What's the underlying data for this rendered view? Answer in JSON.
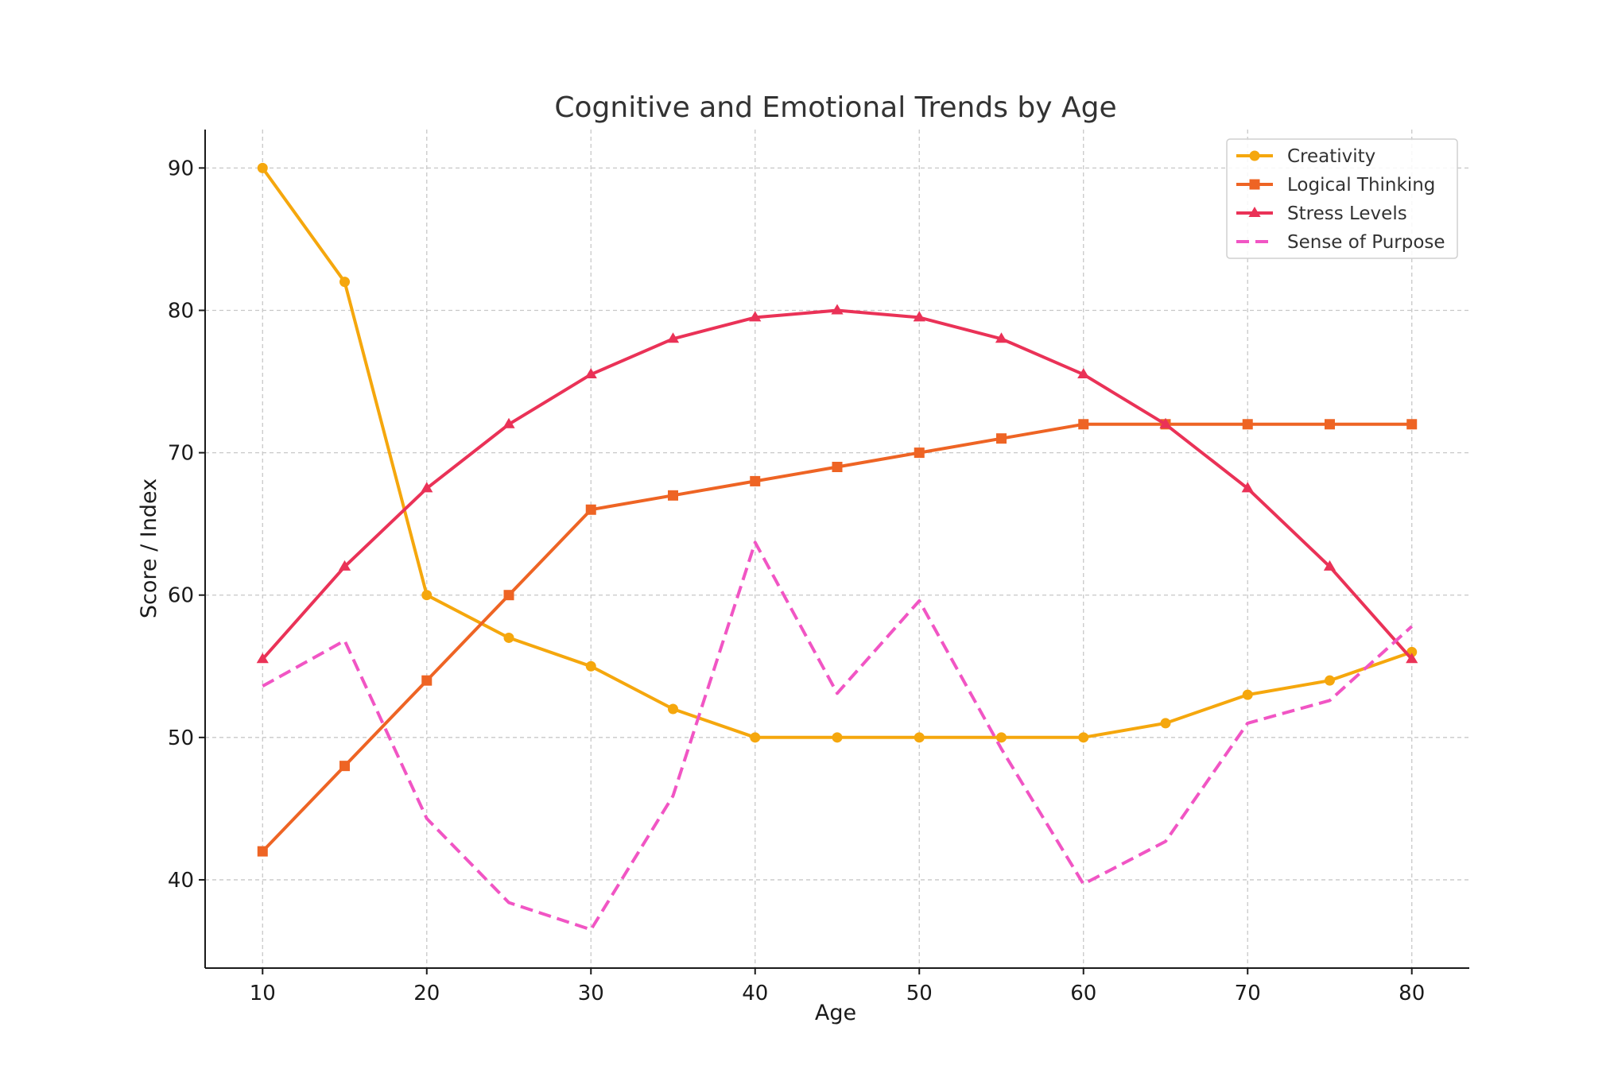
{
  "chart_data": {
    "type": "line",
    "title": "Cognitive and Emotional Trends by Age",
    "xlabel": "Age",
    "ylabel": "Score / Index",
    "xlim": [
      6.5,
      83.5
    ],
    "ylim": [
      33.8,
      92.7
    ],
    "xticks": [
      10,
      20,
      30,
      40,
      50,
      60,
      70,
      80
    ],
    "yticks": [
      40,
      50,
      60,
      70,
      80,
      90
    ],
    "grid": true,
    "legend_position": "top-right",
    "x": [
      10,
      15,
      20,
      25,
      30,
      35,
      40,
      45,
      50,
      55,
      60,
      65,
      70,
      75,
      80
    ],
    "series": [
      {
        "name": "Creativity",
        "color": "#F5A70D",
        "marker": "circle",
        "line_style": "solid",
        "values": [
          90,
          82,
          60,
          57,
          55,
          52,
          50,
          50,
          50,
          50,
          50,
          51,
          53,
          54,
          56
        ]
      },
      {
        "name": "Logical Thinking",
        "color": "#EE6424",
        "marker": "square",
        "line_style": "solid",
        "values": [
          42,
          48,
          54,
          60,
          66,
          67,
          68,
          69,
          70,
          71,
          72,
          72,
          72,
          72,
          72
        ]
      },
      {
        "name": "Stress Levels",
        "color": "#EA3257",
        "marker": "triangle",
        "line_style": "solid",
        "values": [
          55.5,
          62,
          67.5,
          72,
          75.5,
          78,
          79.5,
          80,
          79.5,
          78,
          75.5,
          72,
          67.5,
          62,
          55.5
        ]
      },
      {
        "name": "Sense of Purpose",
        "color": "#F155C4",
        "marker": "none",
        "line_style": "dashed",
        "values": [
          53.6,
          56.8,
          44.3,
          38.4,
          36.5,
          45.9,
          63.7,
          53.1,
          59.6,
          49.2,
          39.7,
          42.7,
          51.0,
          52.6,
          57.8
        ]
      }
    ]
  }
}
